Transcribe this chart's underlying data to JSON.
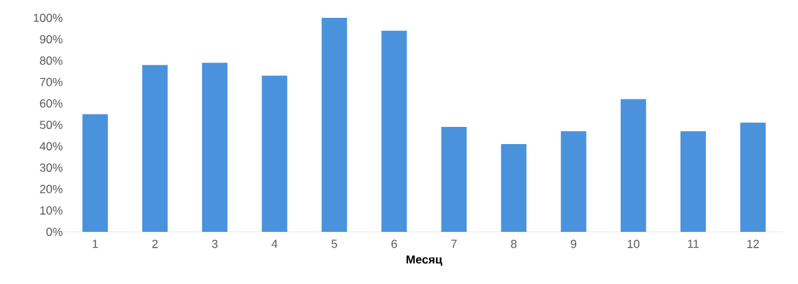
{
  "chart_data": {
    "type": "bar",
    "xlabel": "Месяц",
    "categories": [
      "1",
      "2",
      "3",
      "4",
      "5",
      "6",
      "7",
      "8",
      "9",
      "10",
      "11",
      "12"
    ],
    "values": [
      55,
      78,
      79,
      73,
      100,
      94,
      49,
      41,
      47,
      62,
      47,
      51
    ],
    "color": "#4a92dc",
    "ylim": [
      0,
      100
    ],
    "yticks": [
      {
        "value": 0,
        "label": "0%"
      },
      {
        "value": 10,
        "label": "10%"
      },
      {
        "value": 20,
        "label": "20%"
      },
      {
        "value": 30,
        "label": "30%"
      },
      {
        "value": 40,
        "label": "40%"
      },
      {
        "value": 50,
        "label": "50%"
      },
      {
        "value": 60,
        "label": "60%"
      },
      {
        "value": 70,
        "label": "70%"
      },
      {
        "value": 80,
        "label": "80%"
      },
      {
        "value": 90,
        "label": "90%"
      },
      {
        "value": 100,
        "label": "100%"
      }
    ],
    "grid": false
  }
}
